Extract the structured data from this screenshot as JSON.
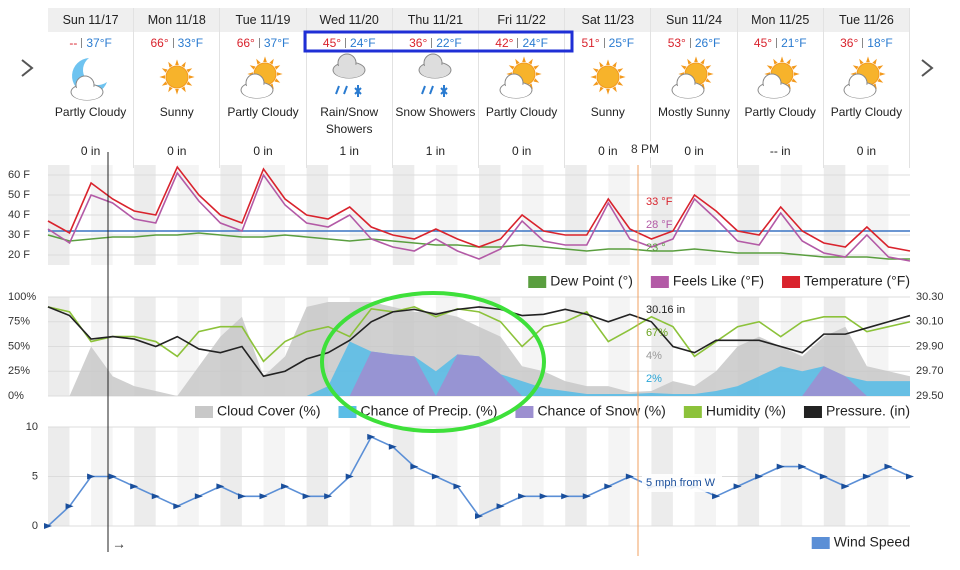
{
  "days": [
    {
      "name": "Sun 11/17",
      "hi": "--",
      "lo": "37°F",
      "condition": "Partly Cloudy",
      "precip": "0 in"
    },
    {
      "name": "Mon 11/18",
      "hi": "66°",
      "lo": "33°F",
      "condition": "Sunny",
      "precip": "0 in"
    },
    {
      "name": "Tue 11/19",
      "hi": "66°",
      "lo": "37°F",
      "condition": "Partly Cloudy",
      "precip": "0 in"
    },
    {
      "name": "Wed 11/20",
      "hi": "45°",
      "lo": "24°F",
      "condition": "Rain/Snow Showers",
      "precip": "1 in"
    },
    {
      "name": "Thu 11/21",
      "hi": "36°",
      "lo": "22°F",
      "condition": "Snow Showers",
      "precip": "1 in"
    },
    {
      "name": "Fri 11/22",
      "hi": "42°",
      "lo": "24°F",
      "condition": "Partly Cloudy",
      "precip": "0 in"
    },
    {
      "name": "Sat 11/23",
      "hi": "51°",
      "lo": "25°F",
      "condition": "Sunny",
      "precip": "0 in"
    },
    {
      "name": "Sun 11/24",
      "hi": "53°",
      "lo": "26°F",
      "condition": "Mostly Sunny",
      "precip": "0 in"
    },
    {
      "name": "Mon 11/25",
      "hi": "45°",
      "lo": "21°F",
      "condition": "Partly Cloudy",
      "precip": "-- in"
    },
    {
      "name": "Tue 11/26",
      "hi": "36°",
      "lo": "18°F",
      "condition": "Partly Cloudy",
      "precip": "0 in"
    }
  ],
  "cursor_label": "8 PM",
  "arrow": "→",
  "chart_data": [
    {
      "type": "line",
      "categories": [
        null,
        null,
        null,
        null,
        null,
        null,
        null,
        null,
        null,
        null,
        null,
        null,
        null,
        null,
        null,
        null,
        null,
        null,
        null,
        null,
        null,
        null,
        null,
        null,
        null,
        null,
        null,
        null,
        null,
        null,
        null,
        null,
        null,
        null,
        null,
        null,
        null,
        null,
        null,
        null,
        null
      ],
      "ylim": [
        15,
        65
      ],
      "yticks": [
        {
          "value": 20,
          "label": "20 F"
        },
        {
          "value": 30,
          "label": "30 F"
        },
        {
          "value": 40,
          "label": "40 F"
        },
        {
          "value": 50,
          "label": "50 F"
        },
        {
          "value": 60,
          "label": "60 F"
        }
      ],
      "freezing_line": 32,
      "series": [
        {
          "name": "Dew Point (°)",
          "color": "#5a9e3f",
          "values": [
            30,
            27,
            28,
            29,
            29,
            30,
            30,
            31,
            30,
            29,
            29,
            30,
            29,
            28,
            27,
            28,
            27,
            26,
            25,
            25,
            24,
            24,
            25,
            24,
            23,
            22,
            23,
            23,
            22,
            22,
            23,
            22,
            21,
            21,
            21,
            20,
            19,
            19,
            19,
            18,
            18
          ]
        },
        {
          "name": "Feels Like (°F)",
          "color": "#b35aa6",
          "values": [
            33,
            26,
            50,
            46,
            38,
            36,
            61,
            47,
            36,
            32,
            60,
            45,
            36,
            34,
            40,
            28,
            24,
            22,
            28,
            22,
            18,
            23,
            37,
            27,
            25,
            25,
            46,
            28,
            24,
            28,
            48,
            38,
            27,
            25,
            41,
            27,
            21,
            19,
            30,
            19,
            17
          ]
        },
        {
          "name": "Temperature (°F)",
          "color": "#d9232d",
          "values": [
            37,
            31,
            56,
            48,
            42,
            40,
            64,
            50,
            40,
            36,
            63,
            48,
            40,
            38,
            44,
            34,
            30,
            28,
            33,
            28,
            24,
            28,
            40,
            32,
            30,
            30,
            48,
            33,
            28,
            32,
            50,
            42,
            32,
            30,
            44,
            32,
            26,
            24,
            34,
            24,
            22
          ]
        }
      ],
      "annotations": [
        "33 °F",
        "28 °F",
        "23 °"
      ]
    },
    {
      "type": "line",
      "categories": [
        null,
        null,
        null,
        null,
        null,
        null,
        null,
        null,
        null,
        null,
        null,
        null,
        null,
        null,
        null,
        null,
        null,
        null,
        null,
        null,
        null,
        null,
        null,
        null,
        null,
        null,
        null,
        null,
        null,
        null,
        null,
        null,
        null,
        null,
        null,
        null,
        null,
        null,
        null,
        null,
        null
      ],
      "ylim": [
        0,
        100
      ],
      "yticks": [
        {
          "value": 0,
          "label": "0%"
        },
        {
          "value": 25,
          "label": "25%"
        },
        {
          "value": 50,
          "label": "50%"
        },
        {
          "value": 75,
          "label": "75%"
        },
        {
          "value": 100,
          "label": "100%"
        }
      ],
      "y2lim": [
        29.5,
        30.3
      ],
      "y2ticks": [
        {
          "value": 29.5,
          "label": "29.50"
        },
        {
          "value": 29.7,
          "label": "29.70"
        },
        {
          "value": 29.9,
          "label": "29.90"
        },
        {
          "value": 30.1,
          "label": "30.10"
        },
        {
          "value": 30.3,
          "label": "30.30"
        }
      ],
      "series": [
        {
          "name": "Cloud Cover (%)",
          "color": "#c8c8c8",
          "style": "area",
          "values": [
            0,
            0,
            50,
            20,
            10,
            5,
            0,
            30,
            60,
            80,
            20,
            40,
            90,
            95,
            95,
            95,
            90,
            85,
            85,
            80,
            70,
            60,
            30,
            25,
            15,
            10,
            10,
            4,
            5,
            15,
            10,
            25,
            50,
            60,
            50,
            40,
            60,
            70,
            30,
            25,
            20
          ]
        },
        {
          "name": "Chance of Precip. (%)",
          "color": "#5bbde6",
          "style": "area",
          "values": [
            0,
            0,
            0,
            0,
            0,
            0,
            0,
            0,
            0,
            0,
            0,
            0,
            0,
            10,
            55,
            45,
            42,
            40,
            25,
            42,
            40,
            22,
            15,
            8,
            5,
            2,
            2,
            2,
            3,
            2,
            2,
            5,
            10,
            20,
            30,
            25,
            30,
            20,
            15,
            15,
            15
          ]
        },
        {
          "name": "Chance of Snow (%)",
          "color": "#9c8fd0",
          "style": "area",
          "values": [
            0,
            0,
            0,
            0,
            0,
            0,
            0,
            0,
            0,
            0,
            0,
            0,
            0,
            0,
            0,
            45,
            42,
            40,
            0,
            42,
            40,
            22,
            0,
            0,
            0,
            0,
            0,
            0,
            0,
            0,
            0,
            0,
            0,
            0,
            0,
            0,
            30,
            20,
            0,
            0,
            0
          ]
        },
        {
          "name": "Humidity (%)",
          "color": "#8cc23a",
          "style": "line",
          "values": [
            90,
            85,
            55,
            60,
            60,
            55,
            40,
            65,
            70,
            70,
            35,
            55,
            65,
            70,
            60,
            88,
            85,
            90,
            80,
            88,
            85,
            75,
            50,
            70,
            75,
            85,
            55,
            67,
            80,
            70,
            40,
            55,
            70,
            75,
            60,
            75,
            80,
            80,
            65,
            70,
            75
          ]
        },
        {
          "name": "Pressure. (in)",
          "color": "#222222",
          "style": "line",
          "axis": "y2",
          "values": [
            30.22,
            30.15,
            29.96,
            29.98,
            29.96,
            29.9,
            29.98,
            29.88,
            29.85,
            29.9,
            29.66,
            29.7,
            29.8,
            29.85,
            29.95,
            30.1,
            30.18,
            30.2,
            30.16,
            30.2,
            30.22,
            30.2,
            30.15,
            30.16,
            30.2,
            30.16,
            30.1,
            30.16,
            30.1,
            29.9,
            29.85,
            29.95,
            29.95,
            29.95,
            29.9,
            29.85,
            30,
            30,
            30.05,
            30.1,
            30.15
          ]
        }
      ],
      "annotations": [
        "30.16 in",
        "67%",
        "4%",
        "2%"
      ]
    },
    {
      "type": "line",
      "categories": [
        null,
        null,
        null,
        null,
        null,
        null,
        null,
        null,
        null,
        null,
        null,
        null,
        null,
        null,
        null,
        null,
        null,
        null,
        null,
        null,
        null,
        null,
        null,
        null,
        null,
        null,
        null,
        null,
        null,
        null,
        null,
        null,
        null,
        null,
        null,
        null,
        null,
        null,
        null,
        null,
        null
      ],
      "ylim": [
        0,
        10
      ],
      "yticks": [
        0,
        5,
        10
      ],
      "series": [
        {
          "name": "Wind Speed",
          "color": "#5b8fd6",
          "values": [
            0,
            2,
            5,
            5,
            4,
            3,
            2,
            3,
            4,
            3,
            3,
            4,
            3,
            3,
            5,
            9,
            8,
            6,
            5,
            4,
            1,
            2,
            3,
            3,
            3,
            3,
            4,
            5,
            4,
            4,
            4,
            3,
            4,
            5,
            6,
            6,
            5,
            4,
            5,
            6,
            5
          ]
        }
      ],
      "annotations": [
        "5 mph from W"
      ]
    }
  ]
}
